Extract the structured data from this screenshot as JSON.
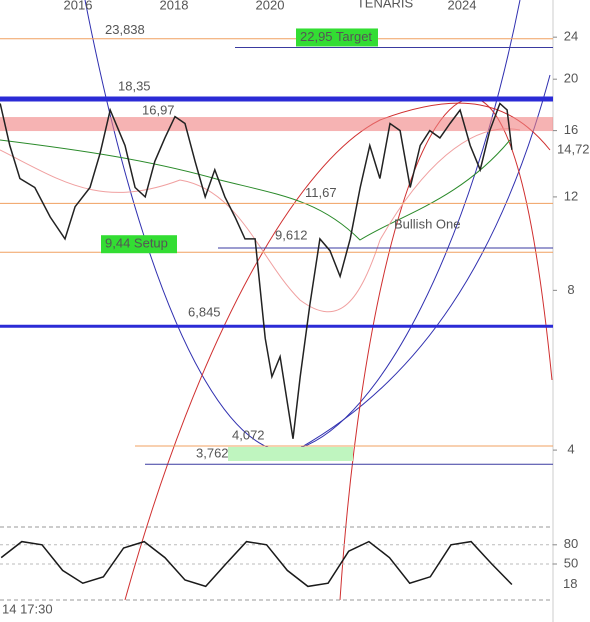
{
  "chart_data": [
    {
      "type": "line",
      "title": "TENARIS",
      "log_scale": true,
      "grid": false,
      "x": [
        2014.38,
        2014.58,
        2014.79,
        2015.1,
        2015.42,
        2015.73,
        2015.94,
        2016.25,
        2016.46,
        2016.67,
        2016.98,
        2017.19,
        2017.4,
        2017.6,
        2017.81,
        2018.02,
        2018.23,
        2018.44,
        2018.65,
        2018.85,
        2019.06,
        2019.27,
        2019.48,
        2019.69,
        2019.9,
        2020.04,
        2020.21,
        2020.38,
        2020.48,
        2020.63,
        2020.83,
        2021.04,
        2021.25,
        2021.46,
        2021.67,
        2021.88,
        2022.08,
        2022.29,
        2022.5,
        2022.71,
        2022.92,
        2023.13,
        2023.33,
        2023.54,
        2023.75,
        2023.96,
        2024.17,
        2024.38,
        2024.58,
        2024.79,
        2024.94,
        2025.04
      ],
      "series": [
        {
          "color": "#222222",
          "values": [
            18,
            15,
            13,
            12.5,
            11,
            10,
            11.5,
            12.5,
            14.5,
            17.5,
            15,
            12.5,
            12,
            14,
            15.5,
            17,
            16.5,
            14,
            12,
            13.5,
            12,
            11,
            10,
            10,
            6.5,
            5.5,
            6,
            4.8,
            4.2,
            5.5,
            7.5,
            10,
            9.5,
            8.5,
            10,
            12.5,
            15,
            13,
            16.5,
            16,
            12.5,
            15,
            16,
            15.5,
            16.5,
            17.5,
            15,
            13.5,
            16,
            18,
            17.5,
            14.72
          ],
          "value_labels": [
            null,
            null,
            null,
            null,
            null,
            null,
            null,
            null,
            null,
            null,
            null,
            null,
            null,
            null,
            null,
            null,
            null,
            null,
            null,
            null,
            null,
            null,
            null,
            null,
            null,
            null,
            null,
            null,
            null,
            null,
            null,
            null,
            null,
            null,
            null,
            null,
            null,
            null,
            null,
            null,
            null,
            null,
            null,
            null,
            null,
            null,
            null,
            null,
            null,
            null,
            null,
            "14,72"
          ]
        }
      ],
      "xlim": [
        2014.375,
        2025.896
      ],
      "xticks": [
        2016,
        2018,
        2020,
        2024
      ],
      "ylim": [
        2.89,
        28.2
      ],
      "yticks": [
        4,
        8,
        12,
        16,
        20,
        24
      ],
      "levels": [
        {
          "value": 23.838,
          "label": "23,838",
          "color": "#f0a060"
        },
        {
          "value": 22.95,
          "label": "22,95 Target",
          "color": "#3a3aa0"
        },
        {
          "value": 18.35,
          "label": "18,35",
          "color": "#2b2bd6"
        },
        {
          "value": 16.97,
          "label": "16,97",
          "color": "#f08080"
        },
        {
          "value": 11.67,
          "label": "11,67",
          "color": "#f0a060"
        },
        {
          "value": 9.612,
          "label": "9,612",
          "color": "#3a3aa0"
        },
        {
          "value": 9.44,
          "label": "9,44 Setup",
          "color": "#f0a060"
        },
        {
          "value": 6.845,
          "label": "6,845",
          "color": "#2b2bd6"
        },
        {
          "value": 4.072,
          "label": "4,072",
          "color": "#f0a060"
        },
        {
          "value": 3.762,
          "label": "3,762",
          "color": "#3a3aa0"
        }
      ],
      "annotations": [
        "Bullish One",
        "14 17:30"
      ]
    },
    {
      "type": "line",
      "x": [
        2014.4,
        2014.83,
        2015.25,
        2015.68,
        2016.1,
        2016.53,
        2016.95,
        2017.38,
        2017.81,
        2018.23,
        2018.66,
        2019.08,
        2019.51,
        2019.93,
        2020.36,
        2020.79,
        2021.21,
        2021.64,
        2022.06,
        2022.49,
        2022.91,
        2023.34,
        2023.77,
        2024.19,
        2024.62,
        2025.04
      ],
      "series": [
        {
          "color": "#1a1a1a",
          "values": [
            60,
            85,
            80,
            40,
            20,
            30,
            75,
            85,
            60,
            25,
            15,
            50,
            85,
            80,
            40,
            15,
            20,
            70,
            85,
            60,
            20,
            30,
            80,
            85,
            50,
            18
          ]
        }
      ],
      "xlim": [
        2014.375,
        2025.896
      ],
      "ylim": [
        0,
        100
      ],
      "yticks": [
        50,
        80
      ]
    }
  ]
}
